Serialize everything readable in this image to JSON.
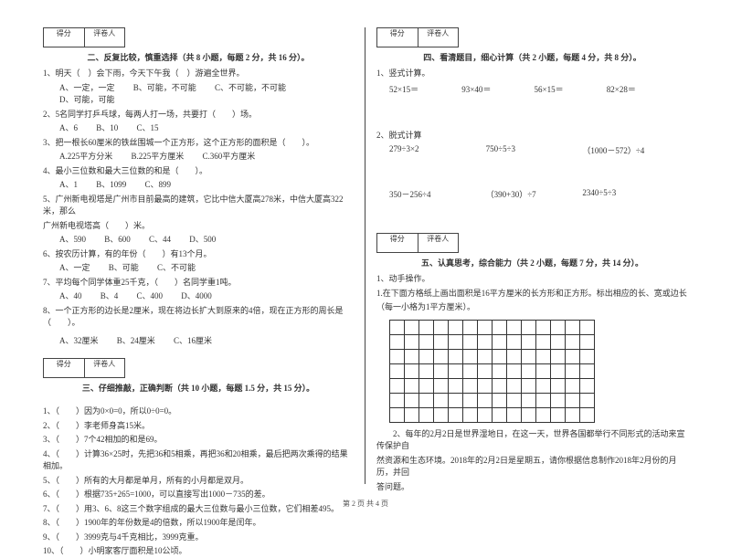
{
  "scorebox": {
    "left": "得分",
    "right": "评卷人"
  },
  "section2": {
    "title": "二、反复比较，慎重选择（共 8 小题，每题 2 分，共 16 分）。",
    "q1": "1、明天（　）会下雨，今天下午我（　）游遍全世界。",
    "q1opts": {
      "a": "A、一定，一定",
      "b": "B、可能，不可能",
      "c": "C、不可能，不可能",
      "d": "D、可能，可能"
    },
    "q2": "2、5名同学打乒乓球，每两人打一场，共要打（　　）场。",
    "q2opts": {
      "a": "A、6",
      "b": "B、10",
      "c": "C、15"
    },
    "q3": "3、把一根长60厘米的铁丝围城一个正方形，这个正方形的面积是（　　）。",
    "q3opts": {
      "a": "A.225平方分米",
      "b": "B.225平方厘米",
      "c": "C.360平方厘米"
    },
    "q4": "4、最小三位数和最大三位数的和是（　　）。",
    "q4opts": {
      "a": "A、1",
      "b": "B、1099",
      "c": "C、899"
    },
    "q5a": "5、广州新电视塔是广州市目前最高的建筑，它比中信大厦高278米，中信大厦高322米，那么",
    "q5b": "广州新电视塔高（　　）米。",
    "q5opts": {
      "a": "A、590",
      "b": "B、600",
      "c": "C、44",
      "d": "D、500"
    },
    "q6": "6、按农历计算，有的年份（　　）有13个月。",
    "q6opts": {
      "a": "A、一定",
      "b": "B、可能",
      "c": "C、不可能"
    },
    "q7": "7、平均每个同学体重25千克，（　　）名同学重1吨。",
    "q7opts": {
      "a": "A、40",
      "b": "B、4",
      "c": "C、400",
      "d": "D、4000"
    },
    "q8": "8、一个正方形的边长是2厘米，现在将边长扩大到原来的4倍，现在正方形的周长是（　　）。",
    "q8opts": {
      "a": "A、32厘米",
      "b": "B、24厘米",
      "c": "C、16厘米"
    }
  },
  "section3": {
    "title": "三、仔细推敲，正确判断（共 10 小题，每题 1.5 分，共 15 分）。",
    "items": [
      "1、（　　）因为0×0=0，所以0÷0=0。",
      "2、（　　）李老师身高15米。",
      "3、（　　）7个42相加的和是69。",
      "4、（　　）计算36×25时，先把36和5相乘，再把36和20相乘，最后把两次乘得的结果相加。",
      "5、（　　）所有的大月都是单月，所有的小月都是双月。",
      "6、（　　）根据735+265=1000，可以直接写出1000－735的差。",
      "7、（　　）用3、6、8这三个数字组成的最大三位数与最小三位数，它们相差495。",
      "8、（　　）1900年的年份数是4的倍数，所以1900年是闰年。",
      "9、（　　）3999克与4千克相比，3999克重。",
      "10、（　　）小明家客厅面积是10公顷。"
    ]
  },
  "section4": {
    "title": "四、看清题目，细心计算（共 2 小题，每题 4 分，共 8 分）。",
    "sub1": "1、竖式计算。",
    "row1": {
      "a": "52×15＝",
      "b": "93×40＝",
      "c": "56×15＝",
      "d": "82×28＝"
    },
    "sub2": "2、脱式计算",
    "row2": {
      "a": "279÷3×2",
      "b": "750÷5÷3",
      "c": "（1000－572）÷4"
    },
    "row3": {
      "a": "350－256÷4",
      "b": "（390+30）÷7",
      "c": "2340÷5÷3"
    }
  },
  "section5": {
    "title": "五、认真思考，综合能力（共 2 小题，每题 7 分，共 14 分）。",
    "sub1": "1、动手操作。",
    "p1a": "1.在下面方格纸上画出面积是16平方厘米的长方形和正方形。标出相应的长、宽或边长",
    "p1b": "（每一小格为1平方厘米）。",
    "p2a": "　　2、每年的2月2日是世界湿地日，在这一天，世界各国都举行不同形式的活动来宣传保护自",
    "p2b": "然资源和生态环境。2018年的2月2日是星期五，请你根据信息制作2018年2月份的月历，并回",
    "p2c": "答问题。"
  },
  "footer": "第 2 页 共 4 页",
  "grid": {
    "rows": 7,
    "cols": 14
  }
}
